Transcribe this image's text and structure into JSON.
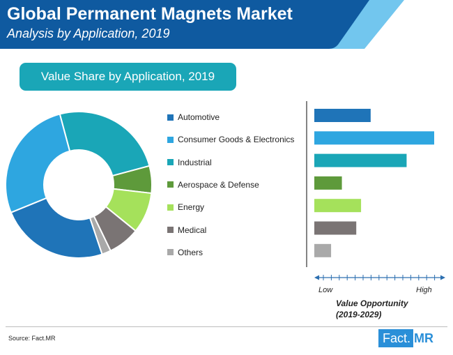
{
  "header": {
    "title": "Global Permanent Magnets Market",
    "subtitle": "Analysis by Application, 2019"
  },
  "section_badge": "Value Share by Application, 2019",
  "chart_data": [
    {
      "type": "pie",
      "title": "Value Share by Application, 2019",
      "donut": true,
      "categories": [
        "Automotive",
        "Consumer Goods & Electronics",
        "Industrial",
        "Aerospace & Defense",
        "Energy",
        "Medical",
        "Others"
      ],
      "values": [
        24,
        27,
        25,
        6,
        9,
        7,
        2
      ],
      "colors": [
        "#1f74b8",
        "#2ea6e0",
        "#1aa6b7",
        "#5e9a3b",
        "#a5e15b",
        "#7a7474",
        "#a9a9a9"
      ],
      "legend_position": "right"
    },
    {
      "type": "bar",
      "orientation": "horizontal",
      "categories": [
        "Automotive",
        "Consumer Goods & Electronics",
        "Industrial",
        "Aerospace & Defense",
        "Energy",
        "Medical",
        "Others"
      ],
      "values": [
        4.7,
        10,
        7.7,
        2.3,
        3.9,
        3.5,
        1.4
      ],
      "xlim": [
        0,
        10
      ],
      "xlabel": "Value Opportunity\n(2019-2029)",
      "low_label": "Low",
      "high_label": "High",
      "axis_title_lines": [
        "Value Opportunity",
        "(2019-2029)"
      ],
      "colors": [
        "#1f74b8",
        "#2ea6e0",
        "#1aa6b7",
        "#5e9a3b",
        "#a5e15b",
        "#7a7474",
        "#a9a9a9"
      ]
    }
  ],
  "footer": {
    "source": "Source: Fact.MR",
    "logo_fact": "Fact.",
    "logo_mr": "MR"
  },
  "theme": {
    "header_dark": "#0f5aa0",
    "header_mid": "#2c9fe0",
    "header_light": "#72c6ee",
    "badge": "#1aa6b7"
  }
}
